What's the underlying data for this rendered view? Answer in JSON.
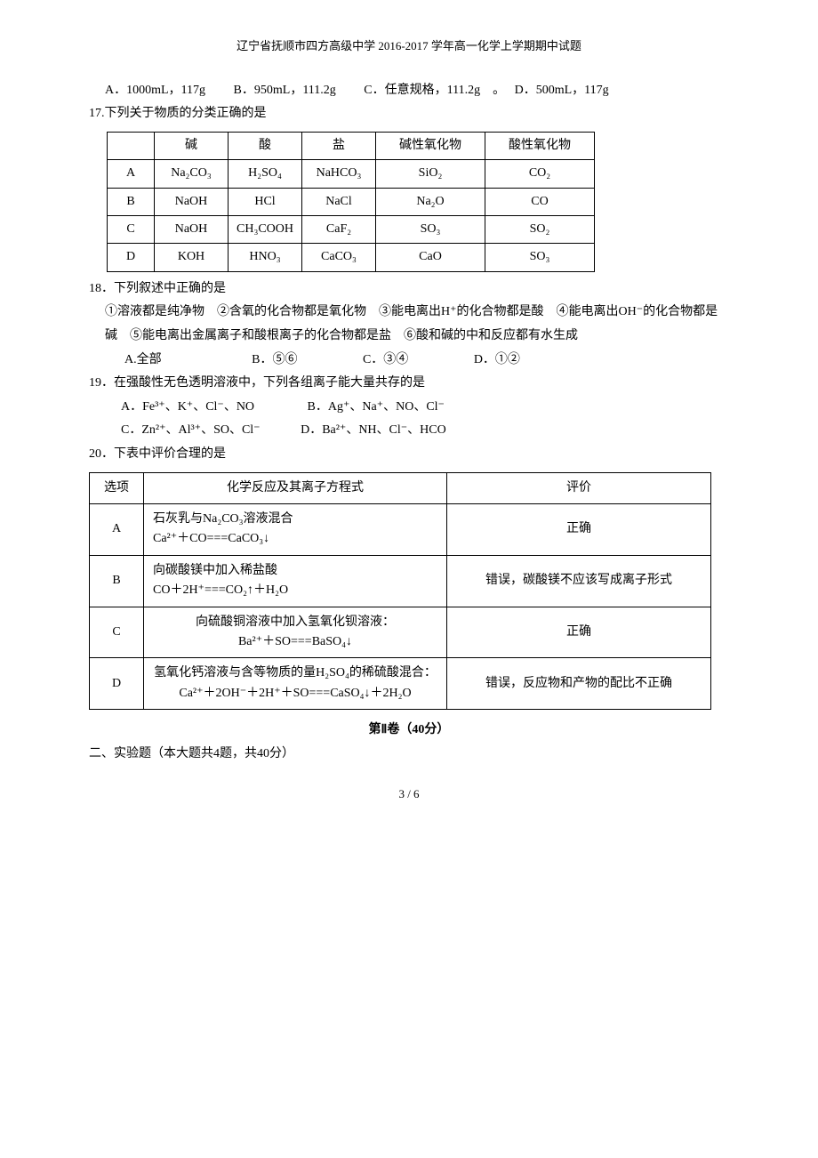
{
  "header": "辽宁省抚顺市四方高级中学 2016-2017 学年高一化学上学期期中试题",
  "q16": {
    "a": "A．1000mL，117g",
    "b": "B．950mL，111.2g",
    "c": "C．任意规格，111.2g",
    "d": "D．500mL，117g"
  },
  "q17": {
    "stem": "17.下列关于物质的分类正确的是",
    "head": {
      "c0": "",
      "c1": "碱",
      "c2": "酸",
      "c3": "盐",
      "c4": "碱性氧化物",
      "c5": "酸性氧化物"
    },
    "rows": [
      {
        "c0": "A",
        "c1": "Na₂CO₃",
        "c2": "H₂SO₄",
        "c3": "NaHCO₃",
        "c4": "SiO₂",
        "c5": "CO₂"
      },
      {
        "c0": "B",
        "c1": "NaOH",
        "c2": "HCl",
        "c3": "NaCl",
        "c4": "Na₂O",
        "c5": "CO"
      },
      {
        "c0": "C",
        "c1": "NaOH",
        "c2": "CH₃COOH",
        "c3": "CaF₂",
        "c4": "SO₃",
        "c5": "SO₂"
      },
      {
        "c0": "D",
        "c1": "KOH",
        "c2": "HNO₃",
        "c3": "CaCO₃",
        "c4": "CaO",
        "c5": "SO₃"
      }
    ]
  },
  "q18": {
    "stem": "18．下列叙述中正确的是",
    "body": "①溶液都是纯净物　②含氧的化合物都是氧化物　③能电离出H⁺的化合物都是酸　④能电离出OH⁻的化合物都是碱　⑤能电离出金属离子和酸根离子的化合物都是盐　⑥酸和碱的中和反应都有水生成",
    "a": "A.全部",
    "b": "B．⑤⑥",
    "c": "C．③④",
    "d": "D．①②"
  },
  "q19": {
    "stem": "19．在强酸性无色透明溶液中，下列各组离子能大量共存的是",
    "a": "A．Fe³⁺、K⁺、Cl⁻、NO",
    "b": "B．Ag⁺、Na⁺、NO、Cl⁻",
    "c": "C．Zn²⁺、Al³⁺、SO、Cl⁻",
    "d": "D．Ba²⁺、NH、Cl⁻、HCO"
  },
  "q20": {
    "stem": "20．下表中评价合理的是",
    "head": {
      "c0": "选项",
      "c1": "化学反应及其离子方程式",
      "c2": "评价"
    },
    "rows": [
      {
        "c0": "A",
        "c1": "石灰乳与Na₂CO₃溶液混合\nCa²⁺＋CO===CaCO₃↓",
        "c2": "正确"
      },
      {
        "c0": "B",
        "c1": "向碳酸镁中加入稀盐酸\nCO＋2H⁺===CO₂↑＋H₂O",
        "c2": "错误，碳酸镁不应该写成离子形式"
      },
      {
        "c0": "C",
        "c1": "向硫酸铜溶液中加入氢氧化钡溶液：\nBa²⁺＋SO===BaSO₄↓",
        "c2": "正确"
      },
      {
        "c0": "D",
        "c1": "氢氧化钙溶液与含等物质的量H₂SO₄的稀硫酸混合：\nCa²⁺＋2OH⁻＋2H⁺＋SO===CaSO₄↓＋2H₂O",
        "c2": "错误，反应物和产物的配比不正确"
      }
    ]
  },
  "section2_title": "第Ⅱ卷（40分）",
  "section2_sub": "二、实验题（本大题共4题，共40分）",
  "page_num": "3 / 6"
}
